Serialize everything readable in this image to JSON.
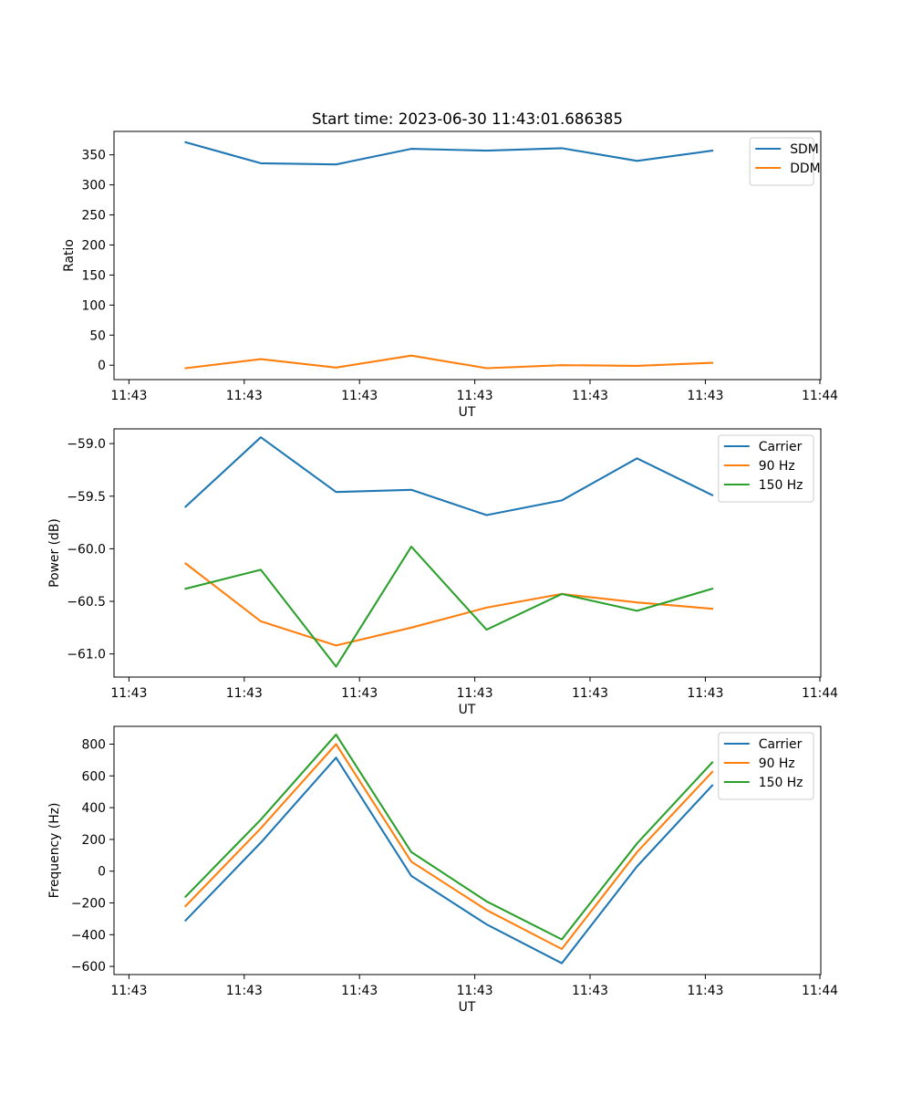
{
  "chart_data": [
    {
      "type": "line",
      "title": "Start time: 2023-06-30 11:43:01.686385",
      "xlabel": "UT",
      "ylabel": "Ratio",
      "x_tick_labels": [
        "11:43",
        "11:43",
        "11:43",
        "11:43",
        "11:43",
        "11:43",
        "11:44"
      ],
      "y_ticks": [
        0,
        50,
        100,
        150,
        200,
        250,
        300,
        350
      ],
      "y_tick_labels": [
        "0",
        "50",
        "100",
        "150",
        "200",
        "250",
        "300",
        "350"
      ],
      "ylim": [
        -24,
        389
      ],
      "legend_position": "top-right",
      "grid": false,
      "x_points": 8,
      "series": [
        {
          "name": "SDM",
          "color": "#1f77b4",
          "values": [
            371,
            336,
            334,
            360,
            357,
            361,
            340,
            357
          ]
        },
        {
          "name": "DDM",
          "color": "#ff7f0e",
          "values": [
            -5,
            10,
            -4,
            16,
            -5,
            0,
            -1,
            4
          ]
        }
      ]
    },
    {
      "type": "line",
      "xlabel": "UT",
      "ylabel": "Power (dB)",
      "x_tick_labels": [
        "11:43",
        "11:43",
        "11:43",
        "11:43",
        "11:43",
        "11:43",
        "11:44"
      ],
      "y_ticks": [
        -61.0,
        -60.5,
        -60.0,
        -59.5,
        -59.0
      ],
      "y_tick_labels": [
        "−61.0",
        "−60.5",
        "−60.0",
        "−59.5",
        "−59.0"
      ],
      "ylim": [
        -61.22,
        -58.86
      ],
      "legend_position": "top-right",
      "grid": false,
      "series": [
        {
          "name": "Carrier",
          "color": "#1f77b4",
          "values": [
            -59.6,
            -58.94,
            -59.46,
            -59.44,
            -59.68,
            -59.54,
            -59.14,
            -59.49
          ]
        },
        {
          "name": "90 Hz",
          "color": "#ff7f0e",
          "values": [
            -60.14,
            -60.69,
            -60.92,
            -60.75,
            -60.56,
            -60.43,
            -60.51,
            -60.57
          ]
        },
        {
          "name": "150 Hz",
          "color": "#2ca02c",
          "values": [
            -60.38,
            -60.2,
            -61.12,
            -59.98,
            -60.77,
            -60.43,
            -60.59,
            -60.38
          ]
        }
      ]
    },
    {
      "type": "line",
      "xlabel": "UT",
      "ylabel": "Frequency (Hz)",
      "x_tick_labels": [
        "11:43",
        "11:43",
        "11:43",
        "11:43",
        "11:43",
        "11:43",
        "11:44"
      ],
      "y_ticks": [
        -600,
        -400,
        -200,
        0,
        200,
        400,
        600,
        800
      ],
      "y_tick_labels": [
        "−600",
        "−400",
        "−200",
        "0",
        "200",
        "400",
        "600",
        "800"
      ],
      "ylim": [
        -651,
        912
      ],
      "legend_position": "top-right",
      "grid": false,
      "series": [
        {
          "name": "Carrier",
          "color": "#1f77b4",
          "values": [
            -310,
            180,
            715,
            -30,
            -335,
            -580,
            30,
            540
          ]
        },
        {
          "name": "90 Hz",
          "color": "#ff7f0e",
          "values": [
            -220,
            270,
            800,
            60,
            -245,
            -490,
            120,
            625
          ]
        },
        {
          "name": "150 Hz",
          "color": "#2ca02c",
          "values": [
            -160,
            325,
            860,
            120,
            -190,
            -430,
            175,
            685
          ]
        }
      ]
    }
  ]
}
